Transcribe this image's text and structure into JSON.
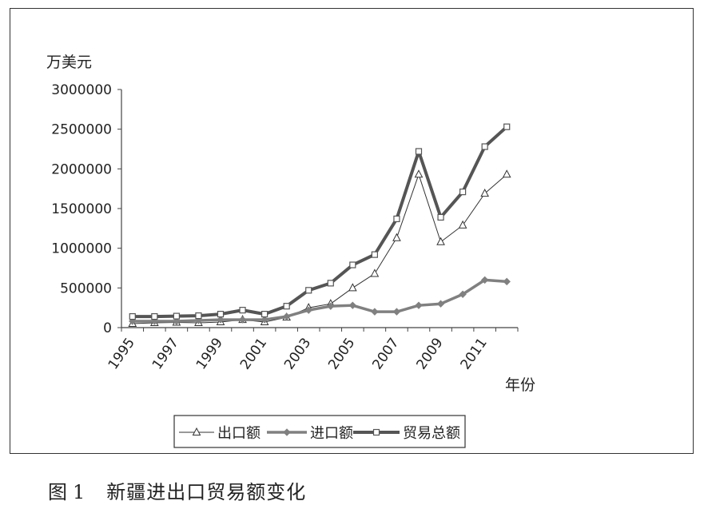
{
  "caption": {
    "label": "图",
    "number": "1",
    "title": "新疆进出口贸易额变化"
  },
  "chart_data": {
    "type": "line",
    "ylabel": "万美元",
    "xlabel": "年份",
    "ylim": [
      0,
      3000000
    ],
    "yticks": [
      "3000000",
      "2500000",
      "2000000",
      "1500000",
      "1000000",
      "500000",
      "0"
    ],
    "xtick_labels": [
      "1995",
      "1997",
      "1999",
      "2001",
      "2003",
      "2005",
      "2007",
      "2009",
      "2011"
    ],
    "x": [
      1995,
      1996,
      1997,
      1998,
      1999,
      2000,
      2001,
      2002,
      2003,
      2004,
      2005,
      2006,
      2007,
      2008,
      2009,
      2010,
      2011,
      2012
    ],
    "grid": false,
    "legend_position": "bottom",
    "series": [
      {
        "name": "出口额",
        "marker": "triangle",
        "color": "#333333",
        "values": [
          50000,
          60000,
          65000,
          60000,
          70000,
          100000,
          70000,
          130000,
          250000,
          300000,
          500000,
          680000,
          1130000,
          1930000,
          1080000,
          1290000,
          1690000,
          1930000
        ]
      },
      {
        "name": "进口额",
        "marker": "diamond",
        "color": "#808080",
        "values": [
          80000,
          80000,
          80000,
          90000,
          100000,
          100000,
          100000,
          140000,
          220000,
          270000,
          280000,
          200000,
          200000,
          280000,
          300000,
          420000,
          600000,
          580000
        ]
      },
      {
        "name": "贸易总额",
        "marker": "square",
        "color": "#555555",
        "values": [
          140000,
          140000,
          145000,
          150000,
          170000,
          220000,
          170000,
          270000,
          470000,
          560000,
          790000,
          920000,
          1370000,
          2220000,
          1390000,
          1710000,
          2280000,
          2530000
        ]
      }
    ]
  }
}
